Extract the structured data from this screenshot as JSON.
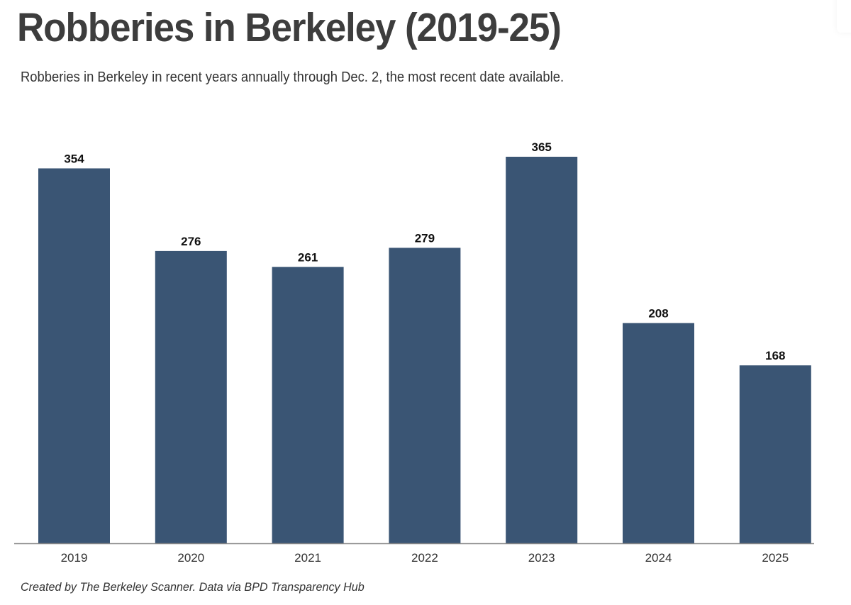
{
  "chart_data": {
    "type": "bar",
    "title": "Robberies in Berkeley (2019-25)",
    "subtitle": "Robberies in Berkeley in recent years annually through Dec. 2, the most recent date available.",
    "categories": [
      "2019",
      "2020",
      "2021",
      "2022",
      "2023",
      "2024",
      "2025"
    ],
    "values": [
      354,
      276,
      261,
      279,
      365,
      208,
      168
    ],
    "data_labels": [
      "354",
      "276",
      "261",
      "279",
      "365",
      "208",
      "168"
    ],
    "xlabel": "",
    "ylabel": "",
    "ylim": [
      0,
      365
    ],
    "grid": false,
    "legend": "none",
    "bar_color": "#3a5574",
    "axis_color": "#888888",
    "caption": "Created by The Berkeley Scanner. Data via BPD Transparency Hub"
  }
}
